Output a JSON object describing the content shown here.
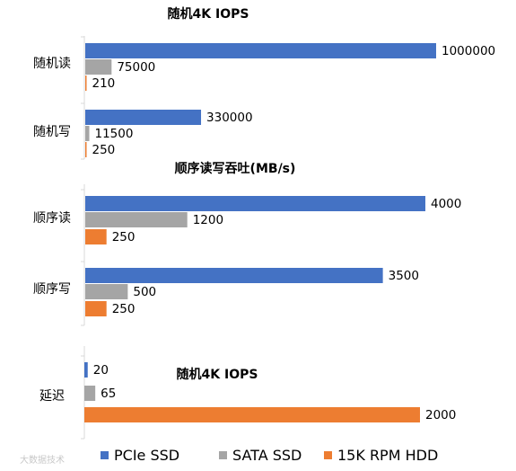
{
  "colors": {
    "pcie": "#4472C4",
    "sata": "#A5A5A5",
    "hdd": "#ED7D31",
    "axis": "#D9D9D9"
  },
  "legend_position": "bottom",
  "watermark_text": "大数据技术",
  "chart_data": [
    {
      "type": "bar",
      "orientation": "horizontal",
      "title": "随机4K IOPS",
      "categories": [
        "随机读",
        "随机写"
      ],
      "series": [
        {
          "name": "PCIe SSD",
          "values": [
            1000000,
            330000
          ]
        },
        {
          "name": "SATA SSD",
          "values": [
            75000,
            11500
          ]
        },
        {
          "name": "15K RPM HDD",
          "values": [
            210,
            250
          ]
        }
      ],
      "grid": false
    },
    {
      "type": "bar",
      "orientation": "horizontal",
      "title": "顺序读写吞吐(MB/s)",
      "categories": [
        "顺序读",
        "顺序写"
      ],
      "series": [
        {
          "name": "PCIe SSD",
          "values": [
            4000,
            3500
          ]
        },
        {
          "name": "SATA SSD",
          "values": [
            1200,
            500
          ]
        },
        {
          "name": "15K RPM HDD",
          "values": [
            250,
            250
          ]
        }
      ],
      "grid": false
    },
    {
      "type": "bar",
      "orientation": "horizontal",
      "title": "随机4K IOPS",
      "categories": [
        "延迟"
      ],
      "series": [
        {
          "name": "PCIe SSD",
          "values": [
            20
          ]
        },
        {
          "name": "SATA SSD",
          "values": [
            65
          ]
        },
        {
          "name": "15K RPM HDD",
          "values": [
            2000
          ]
        }
      ],
      "grid": false
    }
  ]
}
